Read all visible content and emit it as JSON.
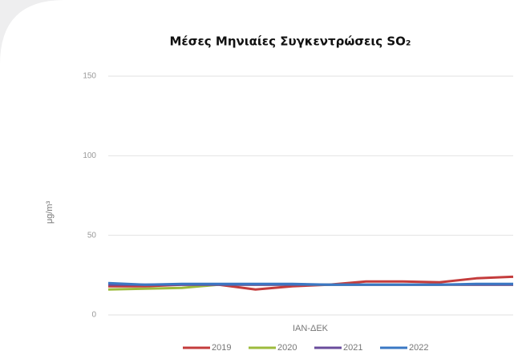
{
  "chart_data": {
    "type": "line",
    "title": "Μέσες Μηνιαίες Συγκεντρώσεις SO₂",
    "x_label": "ΙΑΝ-ΔΕΚ",
    "y_label": "μg/m³",
    "categories": [
      null,
      null,
      null,
      null,
      null,
      null,
      null,
      null,
      null,
      null,
      null,
      null
    ],
    "series": [
      {
        "name": "2019",
        "color": "#c43c3c",
        "values": [
          18,
          18,
          19,
          19,
          16,
          18,
          19,
          21,
          21,
          20.5,
          23,
          24
        ]
      },
      {
        "name": "2020",
        "color": "#9dbb3c",
        "values": [
          16,
          16.5,
          17,
          19,
          19,
          19,
          19,
          19,
          19,
          19,
          19,
          19
        ]
      },
      {
        "name": "2021",
        "color": "#6a4c9c",
        "values": [
          19,
          19,
          19,
          19,
          19,
          19,
          19,
          19,
          19,
          19,
          19,
          19
        ]
      },
      {
        "name": "2022",
        "color": "#3a78c4",
        "values": [
          20,
          19,
          19.5,
          19.5,
          19.5,
          19.5,
          19,
          19,
          19,
          19,
          19.5,
          19.5
        ]
      }
    ],
    "ylim": [
      0,
      150
    ],
    "yticks": [
      0,
      50,
      100,
      150
    ],
    "grid": true
  }
}
